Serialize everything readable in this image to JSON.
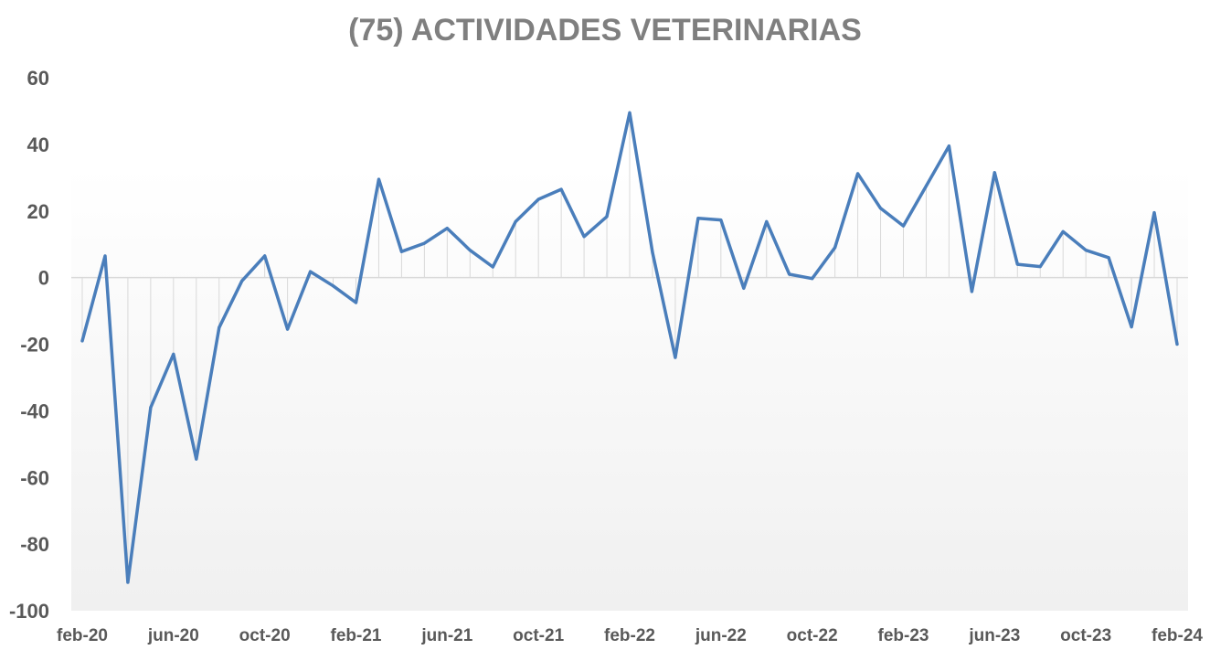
{
  "chart_data": {
    "type": "line",
    "title": "(75) ACTIVIDADES VETERINARIAS",
    "xlabel": "",
    "ylabel": "",
    "ylim": [
      -100,
      60
    ],
    "yticks": [
      60,
      40,
      20,
      0,
      -20,
      -40,
      -60,
      -80,
      -100
    ],
    "xtick_labels": [
      "feb-20",
      "jun-20",
      "oct-20",
      "feb-21",
      "jun-21",
      "oct-21",
      "feb-22",
      "jun-22",
      "oct-22",
      "feb-23",
      "jun-23",
      "oct-23",
      "feb-24"
    ],
    "x": [
      "feb-20",
      "mar-20",
      "apr-20",
      "may-20",
      "jun-20",
      "jul-20",
      "aug-20",
      "sep-20",
      "oct-20",
      "nov-20",
      "dec-20",
      "jan-21",
      "feb-21",
      "mar-21",
      "apr-21",
      "may-21",
      "jun-21",
      "jul-21",
      "aug-21",
      "sep-21",
      "oct-21",
      "nov-21",
      "dec-21",
      "jan-22",
      "feb-22",
      "mar-22",
      "apr-22",
      "may-22",
      "jun-22",
      "jul-22",
      "aug-22",
      "sep-22",
      "oct-22",
      "nov-22",
      "dec-22",
      "jan-23",
      "feb-23",
      "mar-23",
      "apr-23",
      "may-23",
      "jun-23",
      "jul-23",
      "aug-23",
      "sep-23",
      "oct-23",
      "nov-23",
      "dec-23",
      "jan-24",
      "feb-24"
    ],
    "series": [
      {
        "color": "#4a7ebb",
        "values": [
          -19,
          6.5,
          -91.5,
          -39,
          -23,
          -54.5,
          -15,
          -1,
          6.5,
          -15.5,
          1.8,
          -2.5,
          -7.5,
          29.5,
          7.8,
          10.3,
          14.8,
          8.2,
          3.2,
          16.8,
          23.5,
          26.5,
          12.3,
          18.3,
          49.5,
          7.5,
          -24,
          17.8,
          17.3,
          -3.2,
          16.8,
          1,
          -0.3,
          9,
          31.2,
          20.8,
          15.5,
          27.5,
          39.5,
          -4.2,
          31.5,
          4,
          3.3,
          13.8,
          8.2,
          6,
          -14.8,
          19.5,
          -20
        ]
      }
    ],
    "grid": false,
    "legend": "none",
    "drop_lines": true,
    "colors": {
      "line": "#4a7ebb",
      "title": "#7f7f7f",
      "tick_text": "#595959",
      "zero_line": "#d9d9d9",
      "drop_line": "#d9d9d9",
      "plot_bg_top": "#ffffff",
      "plot_bg_bottom": "#f0f0f0"
    }
  }
}
